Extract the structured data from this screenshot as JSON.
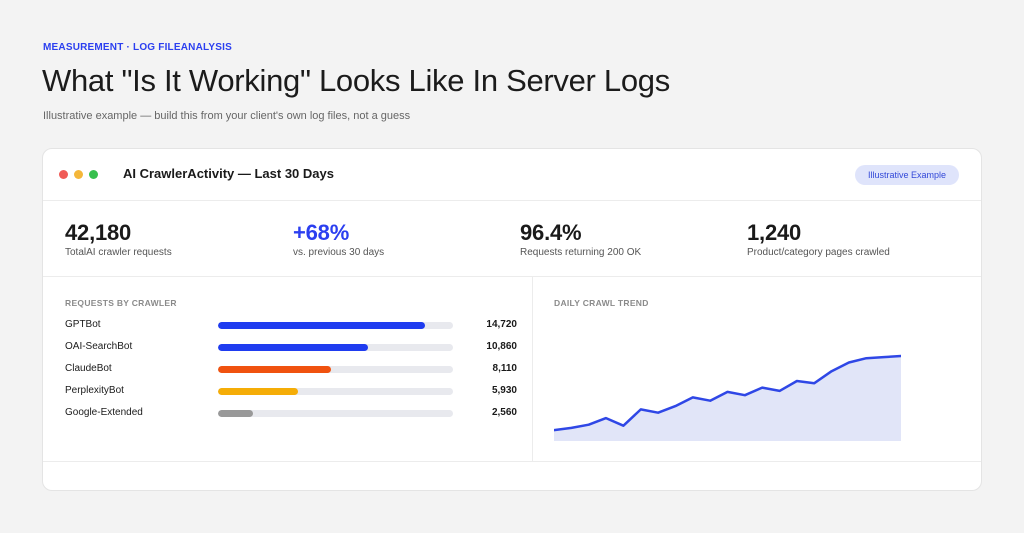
{
  "header": {
    "eyebrow": "MEASUREMENT · LOG FILEANALYSIS",
    "title": "What \"Is It Working\" Looks Like In Server Logs",
    "subtitle": "Illustrative example — build this from your client's own log files, not a guess"
  },
  "card": {
    "title": "AI CrawlerActivity — Last 30 Days",
    "badge": "Illustrative Example",
    "window_dot_colors": [
      "#f05b57",
      "#f4b73a",
      "#37c04e"
    ]
  },
  "stats": [
    {
      "value": "42,180",
      "label": "TotalAI crawler requests"
    },
    {
      "value": "+68%",
      "label": "vs. previous 30 days",
      "accent": "#2b3ff0"
    },
    {
      "value": "96.4%",
      "label": "Requests returning 200 OK"
    },
    {
      "value": "1,240",
      "label": "Product/category pages crawled"
    }
  ],
  "requests_by_crawler": {
    "label": "REQUESTS BY CRAWLER",
    "items": [
      {
        "name": "GPTBot",
        "count": "14,720",
        "value": 14720,
        "fill": 0.88,
        "color": "#1f3cf0"
      },
      {
        "name": "OAI-SearchBot",
        "count": "10,860",
        "value": 10860,
        "fill": 0.64,
        "color": "#1f3cf0"
      },
      {
        "name": "ClaudeBot",
        "count": "8,110",
        "value": 8110,
        "fill": 0.48,
        "color": "#f0520f"
      },
      {
        "name": "PerplexityBot",
        "count": "5,930",
        "value": 5930,
        "fill": 0.34,
        "color": "#f5ad07"
      },
      {
        "name": "Google-Extended",
        "count": "2,560",
        "value": 2560,
        "fill": 0.15,
        "color": "#999999"
      }
    ]
  },
  "daily_trend": {
    "label": "DAILY CRAWL TREND",
    "line_color": "#2f47e6",
    "area_color": "#e1e5f8",
    "chart_data": {
      "type": "area",
      "title": "DAILY CRAWL TREND",
      "x": [
        1,
        2,
        3,
        4,
        5,
        6,
        7,
        8,
        9,
        10,
        11,
        12,
        13,
        14,
        15,
        16,
        17,
        18,
        19,
        20,
        21
      ],
      "values": [
        0.1,
        0.12,
        0.15,
        0.21,
        0.14,
        0.29,
        0.26,
        0.32,
        0.4,
        0.37,
        0.45,
        0.42,
        0.49,
        0.46,
        0.55,
        0.53,
        0.64,
        0.72,
        0.76,
        0.77,
        0.78
      ],
      "ylim": [
        0,
        1
      ],
      "grid": false
    }
  }
}
